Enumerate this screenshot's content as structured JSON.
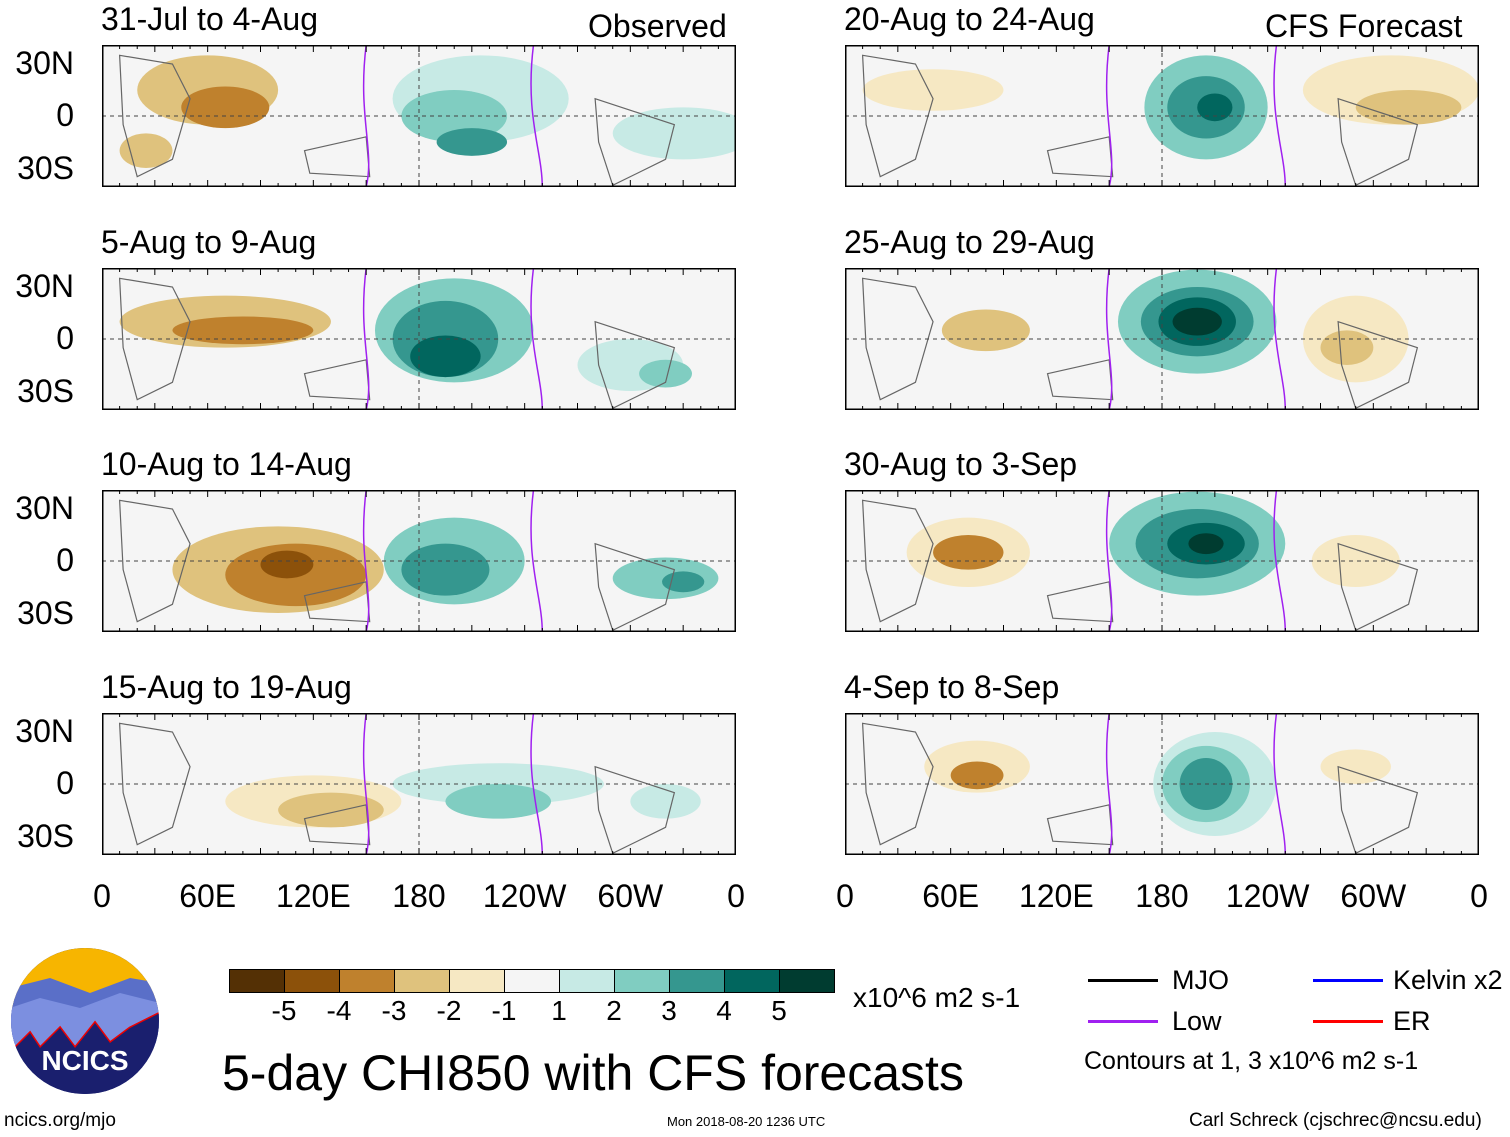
{
  "headers": {
    "left": "Observed",
    "right": "CFS Forecast"
  },
  "panels": {
    "left": [
      {
        "title": "31-Jul to 4-Aug"
      },
      {
        "title": "5-Aug to 9-Aug"
      },
      {
        "title": "10-Aug to 14-Aug"
      },
      {
        "title": "15-Aug to 19-Aug"
      }
    ],
    "right": [
      {
        "title": "20-Aug to 24-Aug"
      },
      {
        "title": "25-Aug to 29-Aug"
      },
      {
        "title": "30-Aug to 3-Sep"
      },
      {
        "title": "4-Sep to 8-Sep"
      }
    ]
  },
  "lat_labels": [
    "30N",
    "0",
    "30S"
  ],
  "lon_labels": [
    "0",
    "60E",
    "120E",
    "180",
    "120W",
    "60W",
    "0"
  ],
  "colorbar": {
    "colors": [
      "#543005",
      "#8c510a",
      "#bf812d",
      "#dfc27d",
      "#f6e8c3",
      "#f5f5f5",
      "#c7eae5",
      "#80cdc1",
      "#35978f",
      "#01665e",
      "#003c30"
    ],
    "ticks": [
      "-5",
      "-4",
      "-3",
      "-2",
      "-1",
      "1",
      "2",
      "3",
      "4",
      "5"
    ],
    "units": "x10^6 m2 s-1"
  },
  "title": "5-day CHI850 with CFS forecasts",
  "legend": {
    "items": [
      {
        "label": "MJO",
        "color": "#000000"
      },
      {
        "label": "Kelvin x2",
        "color": "#0000ff"
      },
      {
        "label": "Low",
        "color": "#a020f0"
      },
      {
        "label": "ER",
        "color": "#ff0000"
      }
    ],
    "note": "Contours at 1, 3 x10^6 m2 s-1"
  },
  "logo": {
    "text": "NCICS"
  },
  "footer": {
    "url": "ncics.org/mjo",
    "timestamp": "Mon 2018-08-20 1236 UTC",
    "author": "Carl Schreck (cjschrec@ncsu.edu)"
  }
}
